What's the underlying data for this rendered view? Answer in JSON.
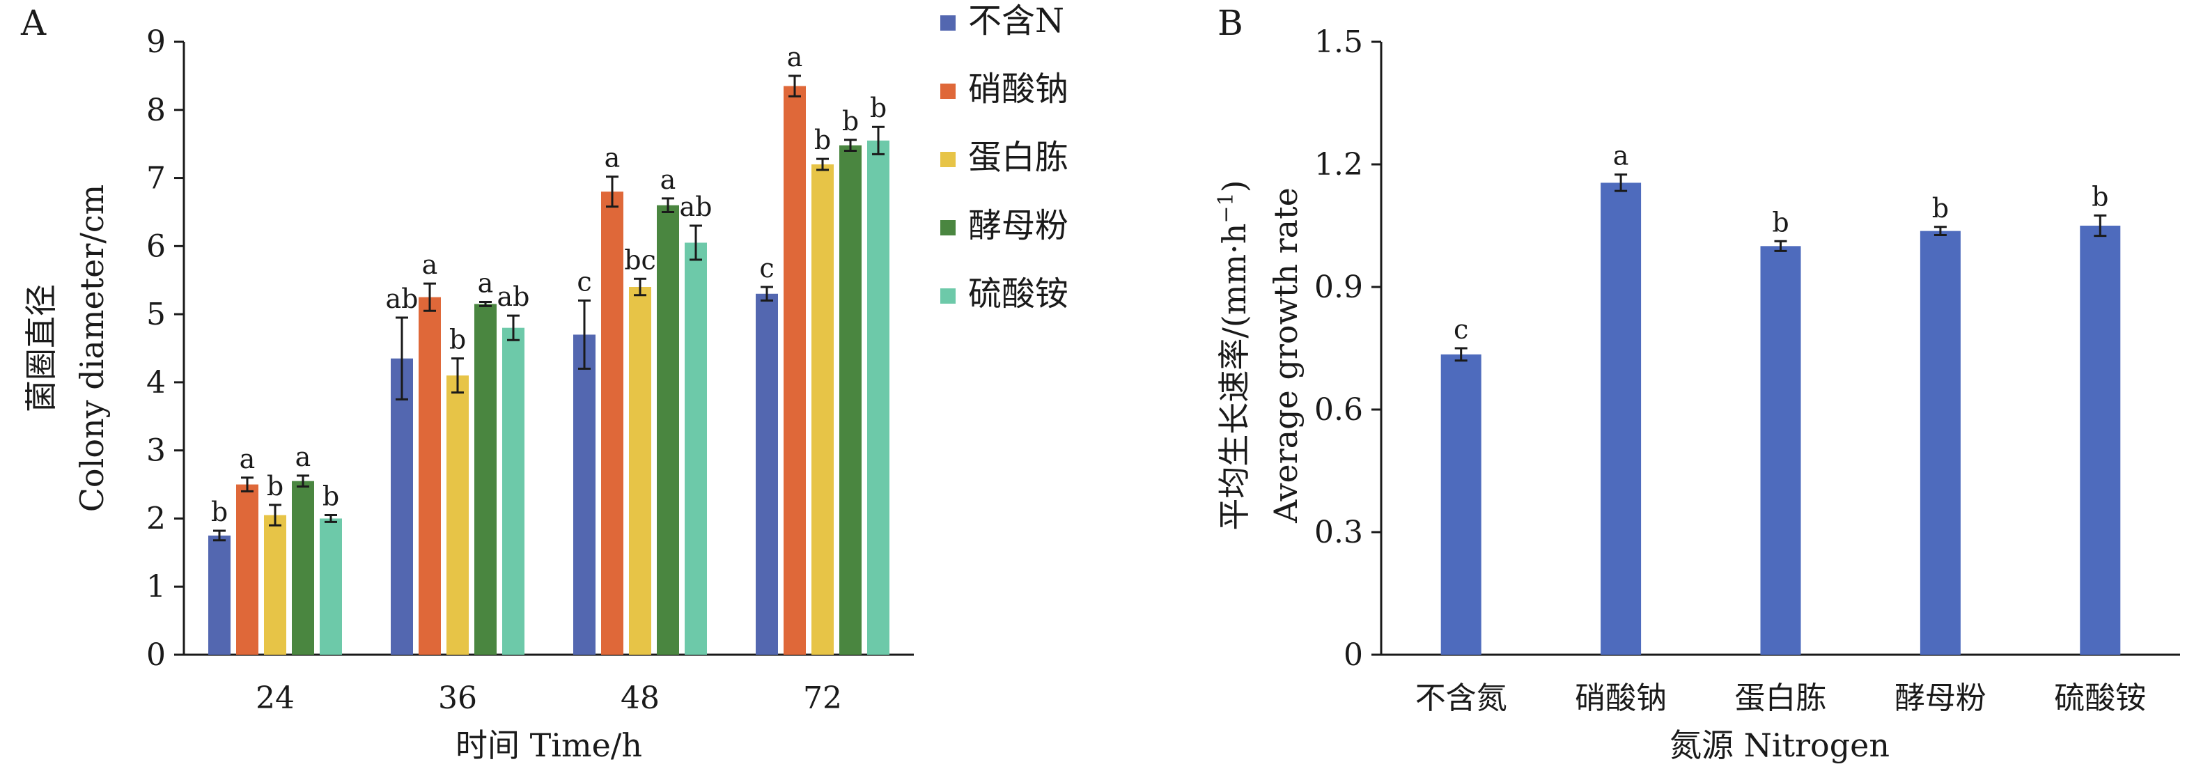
{
  "chart_data": [
    {
      "type": "bar",
      "panel_label": "A",
      "categories": [
        "24",
        "36",
        "48",
        "72"
      ],
      "xlabel": "时间 Time/h",
      "ylabel_cn": "菌圈直径",
      "ylabel_en": "Colony diameter/cm",
      "ylim": [
        0,
        9
      ],
      "yticks": [
        "0",
        "1",
        "2",
        "3",
        "4",
        "5",
        "6",
        "7",
        "8",
        "9"
      ],
      "legend_position": "top-right",
      "series": [
        {
          "name": "不含N",
          "color": "#5367b0",
          "values": [
            1.75,
            4.35,
            4.7,
            5.3
          ],
          "errors": [
            0.07,
            0.6,
            0.5,
            0.1
          ],
          "labels": [
            "b",
            "ab",
            "c",
            "c"
          ]
        },
        {
          "name": "硝酸钠",
          "color": "#df6839",
          "values": [
            2.5,
            5.25,
            6.8,
            8.35
          ],
          "errors": [
            0.1,
            0.2,
            0.22,
            0.15
          ],
          "labels": [
            "a",
            "a",
            "a",
            "a"
          ]
        },
        {
          "name": "蛋白胨",
          "color": "#e7c447",
          "values": [
            2.05,
            4.1,
            5.4,
            7.2
          ],
          "errors": [
            0.15,
            0.25,
            0.12,
            0.08
          ],
          "labels": [
            "b",
            "b",
            "bc",
            "b"
          ]
        },
        {
          "name": "酵母粉",
          "color": "#4a8640",
          "values": [
            2.55,
            5.15,
            6.6,
            7.48
          ],
          "errors": [
            0.08,
            0.03,
            0.1,
            0.08
          ],
          "labels": [
            "a",
            "a",
            "a",
            "b"
          ]
        },
        {
          "name": "硫酸铵",
          "color": "#6dc9a9",
          "values": [
            2.0,
            4.8,
            6.05,
            7.55
          ],
          "errors": [
            0.05,
            0.18,
            0.25,
            0.2
          ],
          "labels": [
            "b",
            "ab",
            "ab",
            "b"
          ]
        }
      ]
    },
    {
      "type": "bar",
      "panel_label": "B",
      "categories": [
        "不含氮",
        "硝酸钠",
        "蛋白胨",
        "酵母粉",
        "硫酸铵"
      ],
      "xlabel": "氮源 Nitrogen",
      "ylabel_cn": "平均生长速率/(mm·h",
      "ylabel_cn_sup": "−1",
      "ylabel_cn_close": ")",
      "ylabel_en": "Average growth rate",
      "ylim": [
        0,
        1.5
      ],
      "yticks": [
        "0",
        "0.3",
        "0.6",
        "0.9",
        "1.2",
        "1.5"
      ],
      "color": "#4e6bbd",
      "values": [
        0.735,
        1.155,
        1.0,
        1.037,
        1.05
      ],
      "errors": [
        0.015,
        0.02,
        0.012,
        0.01,
        0.025
      ],
      "labels": [
        "c",
        "a",
        "b",
        "b",
        "b"
      ]
    }
  ]
}
